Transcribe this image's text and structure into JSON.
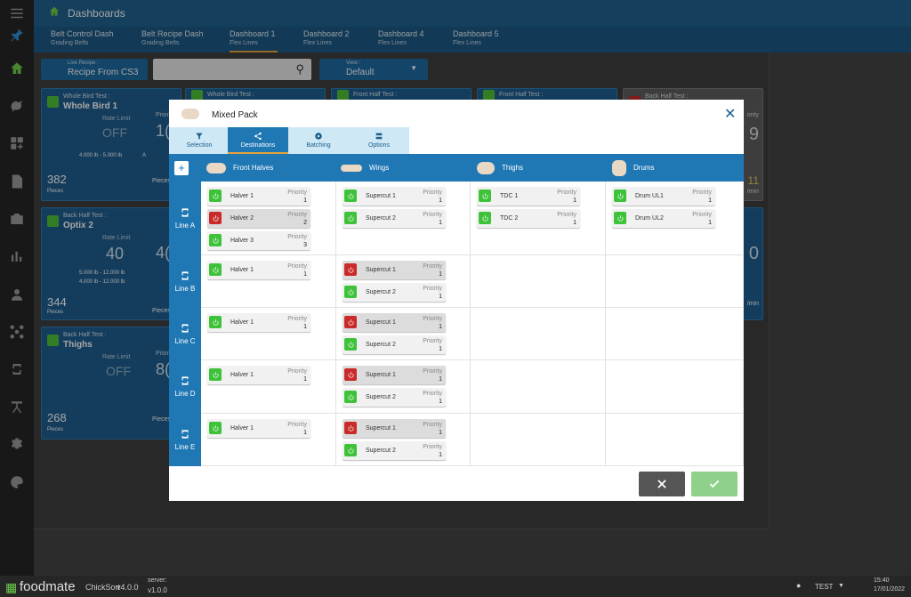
{
  "app": {
    "title": "Dashboards"
  },
  "tabs": [
    {
      "title": "Belt Control Dash",
      "sub": "Grading Belts"
    },
    {
      "title": "Belt Recipe Dash",
      "sub": "Grading Belts"
    },
    {
      "title": "Dashboard 1",
      "sub": "Flex Lines"
    },
    {
      "title": "Dashboard 2",
      "sub": "Flex Lines"
    },
    {
      "title": "Dashboard 4",
      "sub": "Flex Lines"
    },
    {
      "title": "Dashboard 5",
      "sub": "Flex Lines"
    }
  ],
  "recipe": {
    "label": "Live Recipe :",
    "value": "Recipe From CS3"
  },
  "view": {
    "label": "View :",
    "value": "Default"
  },
  "cards": [
    {
      "test": "Whole Bird Test :",
      "name": "Whole Bird 1",
      "rate_label": "Rate Limit",
      "rate": "OFF",
      "range1": "4.000 lb - 5.000 lb",
      "unit": "A",
      "count": "382",
      "count_label": "Pieces",
      "right_label": "Pieces/m",
      "prio": "Prior",
      "prio_val": "1("
    },
    {
      "test": "Back Half Test :",
      "name": "Optix 2",
      "rate_label": "Rate Limit",
      "rate": "40",
      "range1": "5.000 lb - 12.000 lb",
      "range2": "4.000 lb - 12.000 lb",
      "count": "344",
      "count_label": "Pieces",
      "right_label": "Pieces/m",
      "prio_val": "4("
    },
    {
      "test": "Back Half Test :",
      "name": "Thighs",
      "rate_label": "Rate Limit",
      "rate": "OFF",
      "count": "268",
      "count_label": "Pieces",
      "right_label": "Pieces/m",
      "prio": "Prior",
      "prio_val": "8("
    }
  ],
  "cards_top": [
    {
      "test": "Whole Bird Test :"
    },
    {
      "test": "Front Half Test :"
    },
    {
      "test": "Front Half Test :"
    },
    {
      "test": "Back Half Test :"
    }
  ],
  "right_cards": {
    "val1": "9",
    "val2": "11",
    "unit1": "/min",
    "val3": "0",
    "unit2": "/min",
    "prio": "ority"
  },
  "modal": {
    "title": "Mixed Pack",
    "tabs": [
      "Selection",
      "Destinations",
      "Batching",
      "Options"
    ],
    "columns": [
      "Front Halves",
      "Wings",
      "Thighs",
      "Drums"
    ],
    "rows": [
      "Line A",
      "Line B",
      "Line C",
      "Line D",
      "Line E"
    ],
    "priority_label": "Priority",
    "chips": {
      "A": [
        [
          {
            "n": "Halver 1",
            "p": "1",
            "on": true
          },
          {
            "n": "Halver 2",
            "p": "2",
            "on": false,
            "sel": true
          },
          {
            "n": "Halver 3",
            "p": "3",
            "on": true
          }
        ],
        [
          {
            "n": "Supercut 1",
            "p": "1",
            "on": true
          },
          {
            "n": "Supercut 2",
            "p": "1",
            "on": true
          }
        ],
        [
          {
            "n": "TDC 1",
            "p": "1",
            "on": true
          },
          {
            "n": "TDC 2",
            "p": "1",
            "on": true
          }
        ],
        [
          {
            "n": "Drum UL1",
            "p": "1",
            "on": true
          },
          {
            "n": "Drum UL2",
            "p": "1",
            "on": true
          }
        ]
      ],
      "B": [
        [
          {
            "n": "Halver 1",
            "p": "1",
            "on": true
          }
        ],
        [
          {
            "n": "Supercut 1",
            "p": "1",
            "on": false,
            "sel": true
          },
          {
            "n": "Supercut 2",
            "p": "1",
            "on": true
          }
        ],
        [],
        []
      ],
      "C": [
        [
          {
            "n": "Halver 1",
            "p": "1",
            "on": true
          }
        ],
        [
          {
            "n": "Supercut 1",
            "p": "1",
            "on": false,
            "sel": true
          },
          {
            "n": "Supercut 2",
            "p": "1",
            "on": true
          }
        ],
        [],
        []
      ],
      "D": [
        [
          {
            "n": "Halver 1",
            "p": "1",
            "on": true
          }
        ],
        [
          {
            "n": "Supercut 1",
            "p": "1",
            "on": false,
            "sel": true
          },
          {
            "n": "Supercut 2",
            "p": "1",
            "on": true
          }
        ],
        [],
        []
      ],
      "E": [
        [
          {
            "n": "Halver 1",
            "p": "1",
            "on": true
          }
        ],
        [
          {
            "n": "Supercut 1",
            "p": "1",
            "on": false,
            "sel": true
          },
          {
            "n": "Supercut 2",
            "p": "1",
            "on": true
          }
        ],
        [],
        []
      ]
    }
  },
  "footer": {
    "brand": "foodmate",
    "product": "ChickSort",
    "version": "v4.0.0",
    "server_label": "server:",
    "server_version": "v1.0.0",
    "user": "TEST",
    "time": "15:40",
    "date": "17/01/2022"
  },
  "colors": {
    "accent": "#1f77b4",
    "on": "#3ec23a",
    "off": "#c92a2a",
    "tab_active": "#e6a33a"
  }
}
